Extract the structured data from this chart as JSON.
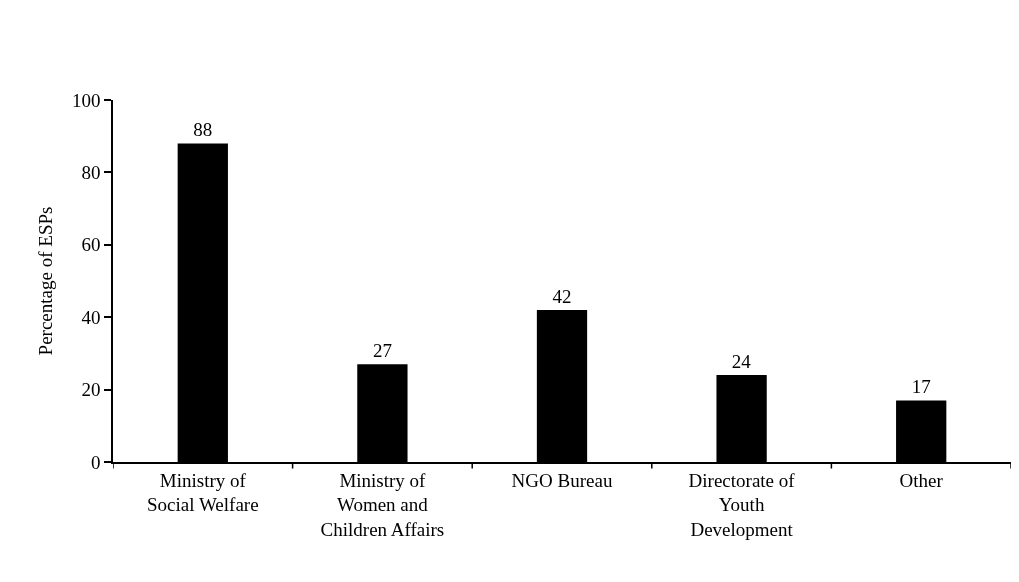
{
  "chart_data": {
    "type": "bar",
    "ylabel": "Percentage of ESPs",
    "categories": [
      "Ministry of\nSocial Welfare",
      "Ministry of\nWomen and\nChildren Affairs",
      "NGO Bureau",
      "Directorate of\nYouth\nDevelopment",
      "Other"
    ],
    "values": [
      88,
      27,
      42,
      24,
      17
    ],
    "color": "#000000",
    "ylim": [
      0,
      100
    ],
    "yticks": [
      0,
      20,
      40,
      60,
      80,
      100
    ],
    "data_labels": true
  }
}
